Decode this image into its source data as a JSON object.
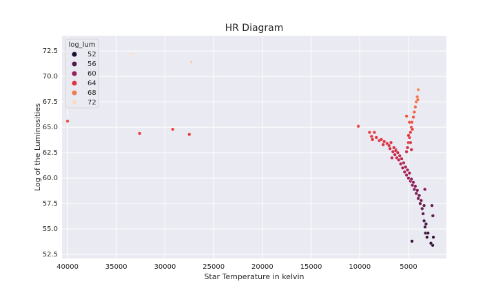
{
  "chart_data": {
    "type": "scatter",
    "title": "HR Diagram",
    "x_label": "Star Temperature in kelvin",
    "y_label": "Log of the Luminosities",
    "xlim": [
      40570,
      1110
    ],
    "ylim": [
      52.1,
      74.0
    ],
    "xticks": [
      40000,
      35000,
      30000,
      25000,
      20000,
      15000,
      10000,
      5000
    ],
    "yticks": [
      52.5,
      {
        "value": 55,
        "label": "55.0"
      },
      57.5,
      {
        "value": 60,
        "label": "60.0"
      },
      62.5,
      {
        "value": 65,
        "label": "65.0"
      },
      67.5,
      {
        "value": 70,
        "label": "70.0"
      },
      72.5
    ],
    "grid": true,
    "legend_title": "log_lum",
    "hue_levels": [
      52,
      56,
      60,
      64,
      68,
      72
    ],
    "hue_colors": [
      "#1c1230",
      "#4f1d4c",
      "#96205c",
      "#e1353f",
      "#f3794f",
      "#f9dcc6"
    ],
    "legend_position": "upper left",
    "x": [
      40000,
      33300,
      32600,
      29200,
      27300,
      27500,
      10150,
      9000,
      8800,
      8500,
      8300,
      8700,
      8000,
      7800,
      7600,
      7500,
      7200,
      7000,
      6900,
      6800,
      6700,
      6600,
      6500,
      6400,
      6300,
      6300,
      6200,
      6100,
      6000,
      5900,
      5800,
      5700,
      5600,
      5500,
      5400,
      5300,
      5200,
      5100,
      5000,
      4900,
      4800,
      4700,
      4600,
      4500,
      4400,
      4300,
      4200,
      4100,
      4000,
      3900,
      3800,
      3700,
      3600,
      3500,
      3400,
      3300,
      3250,
      3200,
      3400,
      3320,
      5200,
      5100,
      5000,
      4900,
      4800,
      4700,
      4650,
      4500,
      4400,
      4300,
      4200,
      4100,
      4000,
      4050,
      4600,
      4900,
      5200,
      5000,
      4800,
      4700,
      4640,
      2520,
      2700,
      2590,
      2500,
      3100,
      3000,
      2450
    ],
    "y": [
      65.6,
      72.2,
      64.4,
      64.8,
      71.4,
      64.3,
      65.1,
      64.5,
      64.1,
      64.5,
      64.0,
      63.8,
      63.7,
      63.8,
      63.3,
      63.6,
      63.4,
      63.2,
      62.9,
      63.5,
      62.0,
      62.6,
      63.0,
      62.3,
      62.8,
      62.7,
      62.0,
      62.5,
      61.8,
      62.2,
      61.4,
      61.9,
      61.0,
      61.5,
      60.6,
      61.1,
      60.3,
      60.8,
      60.0,
      60.5,
      59.7,
      59.9,
      59.3,
      59.6,
      58.9,
      59.2,
      58.5,
      58.8,
      58.0,
      58.3,
      57.5,
      57.8,
      57.0,
      56.5,
      55.8,
      55.2,
      54.6,
      55.5,
      57.3,
      58.9,
      62.6,
      63.0,
      63.5,
      64.0,
      64.5,
      65.0,
      65.5,
      66.0,
      66.5,
      67.0,
      67.5,
      68.0,
      68.7,
      67.7,
      64.8,
      65.5,
      66.1,
      64.2,
      63.5,
      62.8,
      53.8,
      53.4,
      53.6,
      57.3,
      56.3,
      54.2,
      54.6,
      54.2
    ]
  }
}
